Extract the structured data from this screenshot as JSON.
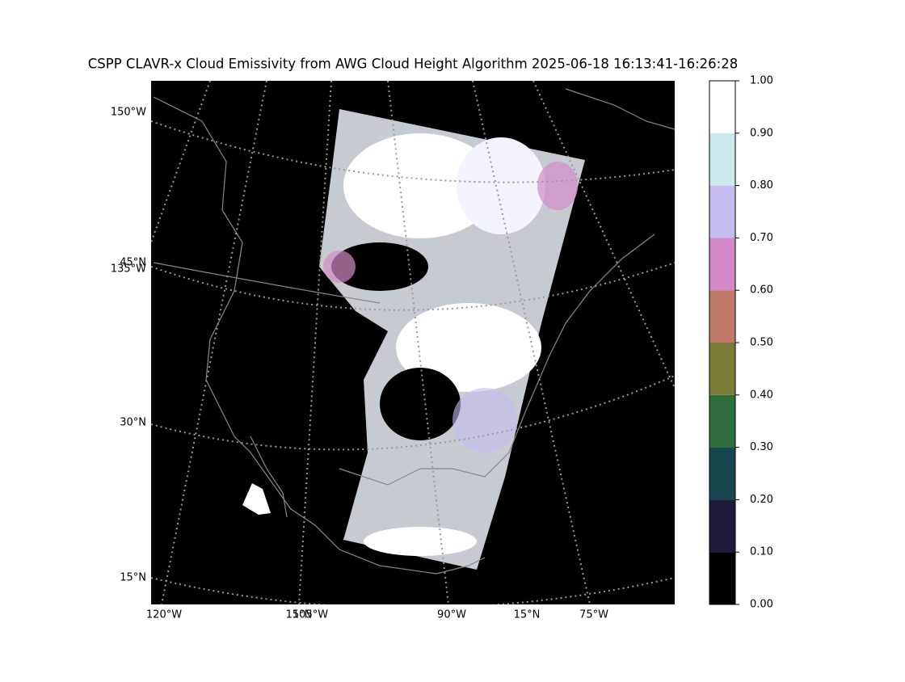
{
  "chart_data": {
    "type": "map",
    "title": "CSPP CLAVR-x Cloud Emissivity from AWG Cloud Height Algorithm 2025-06-18 16:13:41-16:26:28",
    "left_labels": [
      "150°W",
      "45°N",
      "135°W",
      "30°N",
      "15°N"
    ],
    "bottom_labels": [
      "120°W",
      "15°N",
      "105°W",
      "90°W",
      "15°N",
      "75°W"
    ],
    "colorbar": {
      "lim": [
        0,
        1
      ],
      "ticks": [
        {
          "value": 0,
          "label": "0.00"
        },
        {
          "value": 0.1,
          "label": "0.10"
        },
        {
          "value": 0.2,
          "label": "0.20"
        },
        {
          "value": 0.3,
          "label": "0.30"
        },
        {
          "value": 0.4,
          "label": "0.40"
        },
        {
          "value": 0.5,
          "label": "0.50"
        },
        {
          "value": 0.6,
          "label": "0.60"
        },
        {
          "value": 0.7,
          "label": "0.70"
        },
        {
          "value": 0.8,
          "label": "0.80"
        },
        {
          "value": 0.9,
          "label": "0.90"
        },
        {
          "value": 1,
          "label": "1.00"
        }
      ],
      "colors": [
        "#000000",
        "#1e1a3a",
        "#17474f",
        "#2e6e3c",
        "#7a7d36",
        "#c07a6a",
        "#d38ac6",
        "#c4bcf0",
        "#cce9ec",
        "#ffffff"
      ]
    }
  }
}
